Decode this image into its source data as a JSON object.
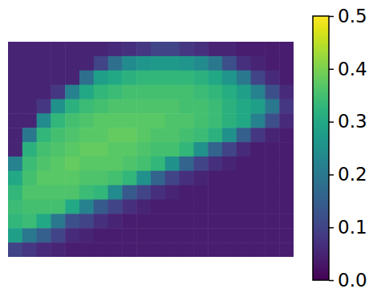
{
  "chart_data": {
    "type": "heatmap",
    "tick_labels": false,
    "z": [
      [
        0.05,
        0.05,
        0.05,
        0.05,
        0.05,
        0.05,
        0.05,
        0.06,
        0.07,
        0.08,
        0.1,
        0.1,
        0.08,
        0.07,
        0.05,
        0.05,
        0.04,
        0.04,
        0.04,
        0.04
      ],
      [
        0.05,
        0.05,
        0.05,
        0.05,
        0.05,
        0.05,
        0.1,
        0.18,
        0.24,
        0.26,
        0.27,
        0.27,
        0.26,
        0.24,
        0.2,
        0.12,
        0.07,
        0.05,
        0.04,
        0.04
      ],
      [
        0.05,
        0.05,
        0.05,
        0.05,
        0.05,
        0.18,
        0.28,
        0.3,
        0.32,
        0.33,
        0.33,
        0.33,
        0.33,
        0.32,
        0.3,
        0.26,
        0.2,
        0.1,
        0.06,
        0.04
      ],
      [
        0.05,
        0.05,
        0.05,
        0.08,
        0.22,
        0.3,
        0.33,
        0.34,
        0.35,
        0.35,
        0.35,
        0.35,
        0.35,
        0.34,
        0.33,
        0.31,
        0.28,
        0.22,
        0.12,
        0.06
      ],
      [
        0.05,
        0.05,
        0.08,
        0.25,
        0.32,
        0.34,
        0.35,
        0.36,
        0.36,
        0.36,
        0.36,
        0.36,
        0.35,
        0.35,
        0.34,
        0.32,
        0.3,
        0.28,
        0.2,
        0.08
      ],
      [
        0.05,
        0.05,
        0.24,
        0.33,
        0.35,
        0.36,
        0.37,
        0.37,
        0.37,
        0.37,
        0.37,
        0.36,
        0.36,
        0.35,
        0.34,
        0.32,
        0.3,
        0.22,
        0.12,
        0.06
      ],
      [
        0.05,
        0.2,
        0.33,
        0.35,
        0.36,
        0.37,
        0.37,
        0.38,
        0.38,
        0.37,
        0.36,
        0.36,
        0.35,
        0.34,
        0.32,
        0.25,
        0.15,
        0.08,
        0.05,
        0.04
      ],
      [
        0.05,
        0.32,
        0.35,
        0.36,
        0.37,
        0.38,
        0.38,
        0.37,
        0.37,
        0.36,
        0.35,
        0.35,
        0.33,
        0.25,
        0.16,
        0.1,
        0.06,
        0.04,
        0.04,
        0.04
      ],
      [
        0.22,
        0.34,
        0.36,
        0.37,
        0.38,
        0.37,
        0.37,
        0.37,
        0.36,
        0.35,
        0.33,
        0.25,
        0.16,
        0.1,
        0.07,
        0.05,
        0.04,
        0.04,
        0.04,
        0.04
      ],
      [
        0.3,
        0.35,
        0.37,
        0.37,
        0.37,
        0.36,
        0.36,
        0.35,
        0.33,
        0.25,
        0.16,
        0.1,
        0.07,
        0.05,
        0.04,
        0.04,
        0.04,
        0.04,
        0.04,
        0.04
      ],
      [
        0.33,
        0.36,
        0.36,
        0.36,
        0.36,
        0.34,
        0.33,
        0.24,
        0.14,
        0.1,
        0.07,
        0.05,
        0.04,
        0.04,
        0.04,
        0.04,
        0.04,
        0.04,
        0.04,
        0.04
      ],
      [
        0.34,
        0.35,
        0.35,
        0.35,
        0.3,
        0.22,
        0.14,
        0.1,
        0.07,
        0.05,
        0.04,
        0.04,
        0.04,
        0.04,
        0.04,
        0.04,
        0.04,
        0.04,
        0.04,
        0.04
      ],
      [
        0.33,
        0.34,
        0.3,
        0.2,
        0.12,
        0.1,
        0.07,
        0.05,
        0.04,
        0.04,
        0.04,
        0.04,
        0.04,
        0.04,
        0.04,
        0.04,
        0.04,
        0.04,
        0.04,
        0.04
      ],
      [
        0.28,
        0.2,
        0.15,
        0.1,
        0.06,
        0.05,
        0.04,
        0.04,
        0.04,
        0.04,
        0.04,
        0.04,
        0.04,
        0.04,
        0.04,
        0.04,
        0.04,
        0.04,
        0.04,
        0.04
      ],
      [
        0.1,
        0.08,
        0.06,
        0.05,
        0.04,
        0.04,
        0.04,
        0.04,
        0.04,
        0.04,
        0.04,
        0.04,
        0.04,
        0.04,
        0.04,
        0.04,
        0.04,
        0.04,
        0.04,
        0.04
      ]
    ],
    "color_range": [
      0,
      0.5
    ],
    "color_ticks": [
      {
        "value": 0,
        "label": "0.0"
      },
      0.1,
      0.2,
      0.3,
      0.4,
      0.5
    ]
  }
}
